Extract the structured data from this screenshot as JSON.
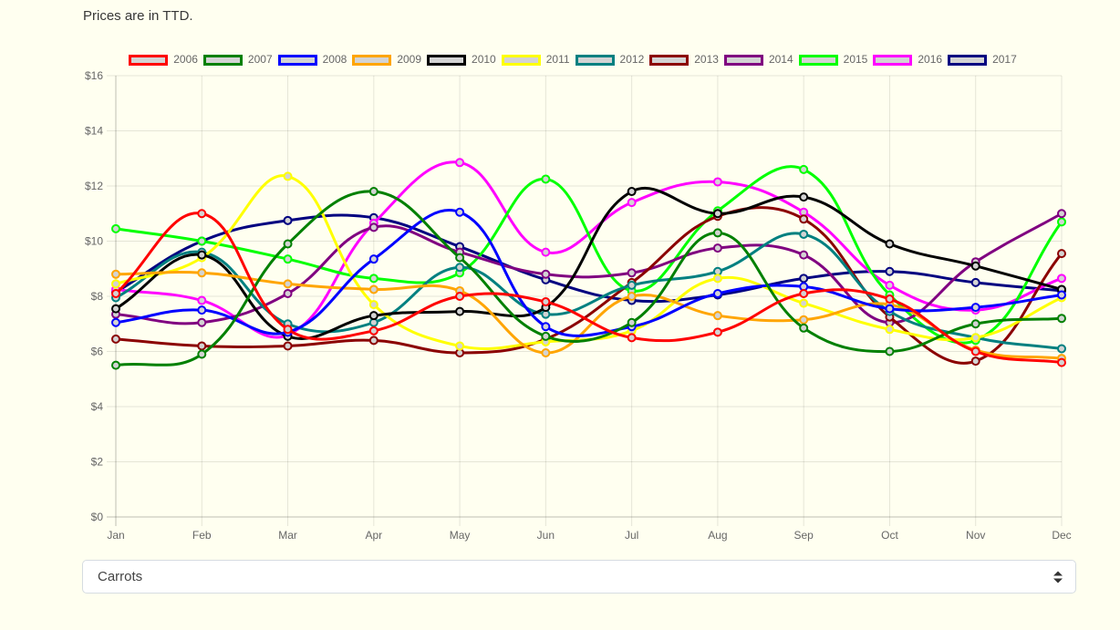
{
  "page": {
    "title": "Prices are in TTD.",
    "background_color": "#FFFFF0"
  },
  "controls": {
    "item_select": {
      "value": "Carrots",
      "icon": "up-down-arrows-icon"
    }
  },
  "chart_data": {
    "type": "line",
    "title": "",
    "xlabel": "",
    "ylabel": "",
    "x": [
      "Jan",
      "Feb",
      "Mar",
      "Apr",
      "May",
      "Jun",
      "Jul",
      "Aug",
      "Sep",
      "Oct",
      "Nov",
      "Dec"
    ],
    "ylim": [
      0,
      16
    ],
    "ytick_step": 2,
    "ytick_prefix": "$",
    "yticks": [
      "$0",
      "$2",
      "$4",
      "$6",
      "$8",
      "$10",
      "$12",
      "$14",
      "$16"
    ],
    "grid": true,
    "legend_position": "top",
    "line_tension": 0.4,
    "point_fill": "#D3D3D3",
    "series": [
      {
        "name": "2006",
        "color": "#FF0000",
        "values": [
          8.1,
          11.0,
          6.8,
          6.75,
          8.0,
          7.8,
          6.5,
          6.7,
          8.1,
          7.9,
          6.0,
          5.6
        ]
      },
      {
        "name": "2007",
        "color": "#008000",
        "values": [
          5.5,
          5.9,
          9.9,
          11.8,
          9.4,
          6.55,
          7.05,
          10.3,
          6.85,
          6.0,
          7.0,
          7.2
        ]
      },
      {
        "name": "2008",
        "color": "#0000FF",
        "values": [
          7.05,
          7.5,
          6.7,
          9.35,
          11.05,
          6.9,
          6.9,
          8.1,
          8.35,
          7.55,
          7.6,
          8.05
        ]
      },
      {
        "name": "2009",
        "color": "#FFA500",
        "values": [
          8.8,
          8.85,
          8.45,
          8.25,
          8.2,
          5.95,
          8.0,
          7.3,
          7.15,
          7.7,
          6.05,
          5.75
        ]
      },
      {
        "name": "2010",
        "color": "#000000",
        "values": [
          7.55,
          9.5,
          6.55,
          7.3,
          7.45,
          7.6,
          11.8,
          11.0,
          11.6,
          9.9,
          9.1,
          8.25
        ]
      },
      {
        "name": "2011",
        "color": "#FFFF00",
        "values": [
          8.45,
          9.4,
          12.35,
          7.7,
          6.2,
          6.35,
          6.75,
          8.65,
          7.75,
          6.8,
          6.5,
          7.95
        ]
      },
      {
        "name": "2012",
        "color": "#008080",
        "values": [
          7.95,
          9.6,
          7.0,
          7.05,
          9.05,
          7.35,
          8.4,
          8.9,
          10.25,
          7.45,
          6.5,
          6.1
        ]
      },
      {
        "name": "2013",
        "color": "#8B0000",
        "values": [
          6.45,
          6.2,
          6.2,
          6.4,
          5.95,
          6.45,
          8.5,
          10.9,
          10.8,
          7.25,
          5.65,
          9.55
        ]
      },
      {
        "name": "2014",
        "color": "#800080",
        "values": [
          7.35,
          7.05,
          8.1,
          10.5,
          9.6,
          8.8,
          8.85,
          9.75,
          9.5,
          7.05,
          9.25,
          11.0
        ]
      },
      {
        "name": "2015",
        "color": "#00FF00",
        "values": [
          10.45,
          10.0,
          9.35,
          8.65,
          8.85,
          12.25,
          8.2,
          11.1,
          12.6,
          8.05,
          6.4,
          10.7
        ]
      },
      {
        "name": "2016",
        "color": "#FF00FF",
        "values": [
          8.25,
          7.85,
          6.6,
          10.65,
          12.85,
          9.6,
          11.4,
          12.15,
          11.05,
          8.4,
          7.5,
          8.65
        ]
      },
      {
        "name": "2017",
        "color": "#000080",
        "values": [
          8.15,
          10.0,
          10.75,
          10.85,
          9.8,
          8.6,
          7.85,
          8.05,
          8.65,
          8.9,
          8.5,
          8.2
        ]
      }
    ]
  }
}
